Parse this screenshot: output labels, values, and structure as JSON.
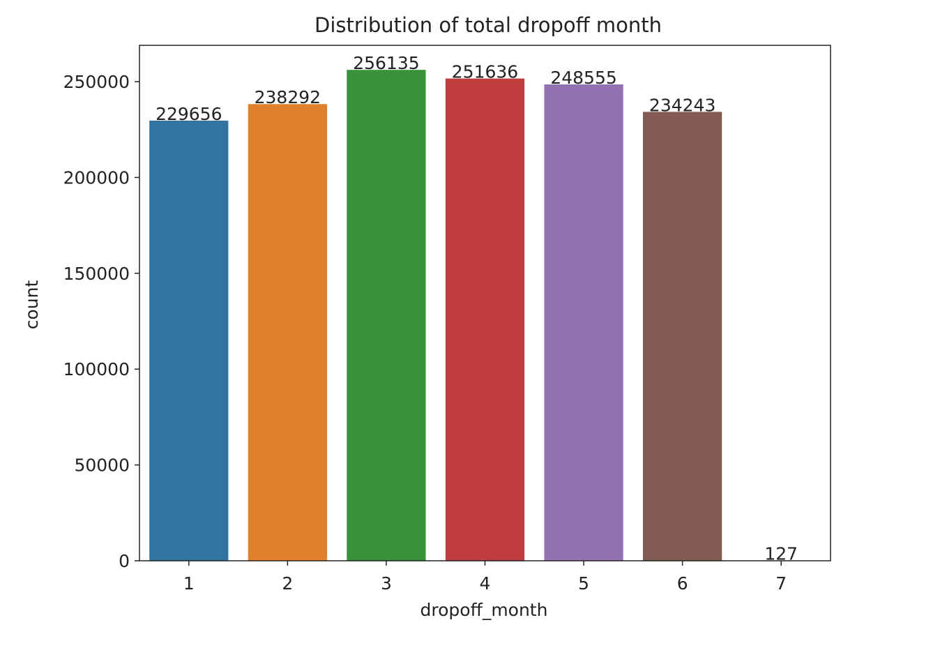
{
  "chart_data": {
    "type": "bar",
    "title": "Distribution of total dropoff month",
    "x_label": "dropoff_month",
    "y_label": "count",
    "categories": [
      "1",
      "2",
      "3",
      "4",
      "5",
      "6",
      "7"
    ],
    "values": [
      229656,
      238292,
      256135,
      251636,
      248555,
      234243,
      127
    ],
    "colors": [
      "#3274a1",
      "#e1812c",
      "#3a923a",
      "#c03d3e",
      "#9372b2",
      "#845b53",
      "#d684bd"
    ],
    "ylim": [
      0,
      268942
    ],
    "yticks": [
      0,
      50000,
      100000,
      150000,
      200000,
      250000
    ],
    "grid": false
  }
}
